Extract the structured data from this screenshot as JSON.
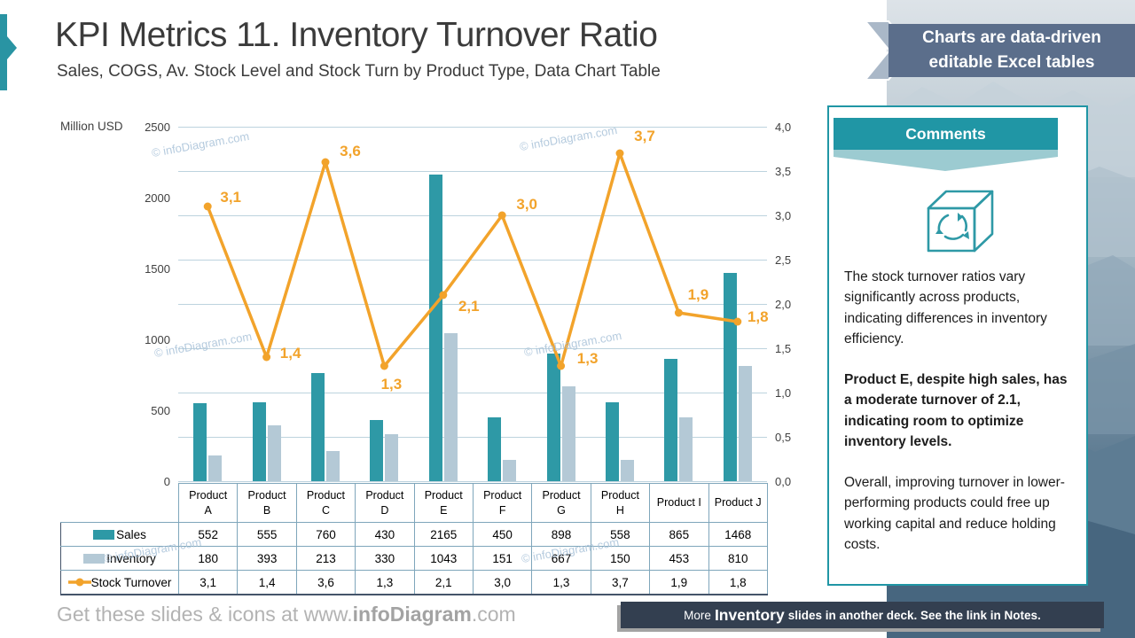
{
  "slide": {
    "title": "KPI Metrics 11. Inventory Turnover Ratio",
    "subtitle": "Sales, COGS, Av. Stock Level and Stock Turn by Product Type, Data Chart Table"
  },
  "badge": {
    "line1": "Charts are data-driven",
    "line2": "editable Excel tables"
  },
  "watermark_text": "© infoDiagram.com",
  "chart_data": {
    "type": "combo bar+line with data table",
    "categories": [
      "Product A",
      "Product B",
      "Product C",
      "Product D",
      "Product E",
      "Product F",
      "Product G",
      "Product H",
      "Product I",
      "Product J"
    ],
    "category_lines": [
      [
        "Product",
        "A"
      ],
      [
        "Product",
        "B"
      ],
      [
        "Product",
        "C"
      ],
      [
        "Product",
        "D"
      ],
      [
        "Product",
        "E"
      ],
      [
        "Product",
        "F"
      ],
      [
        "Product",
        "G"
      ],
      [
        "Product",
        "H"
      ],
      [
        "Product I",
        ""
      ],
      [
        "Product J",
        ""
      ]
    ],
    "series": [
      {
        "name": "Sales",
        "type": "bar",
        "axis": "left",
        "values": [
          552,
          555,
          760,
          430,
          2165,
          450,
          898,
          558,
          865,
          1468
        ]
      },
      {
        "name": "Inventory",
        "type": "bar",
        "axis": "left",
        "values": [
          180,
          393,
          213,
          330,
          1043,
          151,
          667,
          150,
          453,
          810
        ]
      },
      {
        "name": "Stock Turnover",
        "type": "line",
        "axis": "right",
        "values": [
          3.1,
          1.4,
          3.6,
          1.3,
          2.1,
          3.0,
          1.3,
          3.7,
          1.9,
          1.8
        ],
        "labels": [
          "3,1",
          "1,4",
          "3,6",
          "1,3",
          "2,1",
          "3,0",
          "1,3",
          "3,7",
          "1,9",
          "1,8"
        ]
      }
    ],
    "left_axis": {
      "title": "Million USD",
      "min": 0,
      "max": 2500,
      "step": 500,
      "tick_labels": [
        "2500",
        "2000",
        "1500",
        "1000",
        "500",
        "0"
      ]
    },
    "right_axis": {
      "min": 0,
      "max": 4,
      "step": 0.5,
      "tick_labels": [
        "4,0",
        "3,5",
        "3,0",
        "2,5",
        "2,0",
        "1,5",
        "1,0",
        "0,5",
        "0,0"
      ]
    },
    "grid": true,
    "legend_position": "table-left-column"
  },
  "comments": {
    "title": "Comments",
    "icon": "cube-recycle-icon",
    "paragraphs": [
      {
        "bold": false,
        "text": "The stock turnover ratios vary significantly across products, indicating differences in inventory efficiency."
      },
      {
        "bold": true,
        "text": "Product E, despite high sales, has a moderate turnover of 2.1, indicating room to optimize inventory levels."
      },
      {
        "bold": false,
        "text": "Overall, improving turnover in lower-performing products could free up working capital and reduce holding costs."
      }
    ]
  },
  "footer": {
    "left_prefix": "Get these slides & icons at www.",
    "left_bold": "infoDiagram",
    "left_suffix": ".com",
    "right_prefix": "More ",
    "right_bold": "Inventory",
    "right_suffix": " slides in another deck. See the link in Notes."
  },
  "colors": {
    "teal_bar": "#2E99A6",
    "light_bar": "#B4C9D6",
    "orange_line": "#F2A32B",
    "slate_badge": "#5B6E8B",
    "footer_dark": "#333F50",
    "comments_teal": "#2096A5",
    "ribbon_light": "#9CCBD1",
    "gridline": "#BDD3DE",
    "table_border_light": "#7FA6BB",
    "table_border_dark": "#44546A",
    "watermark": "#A9C2D9"
  }
}
